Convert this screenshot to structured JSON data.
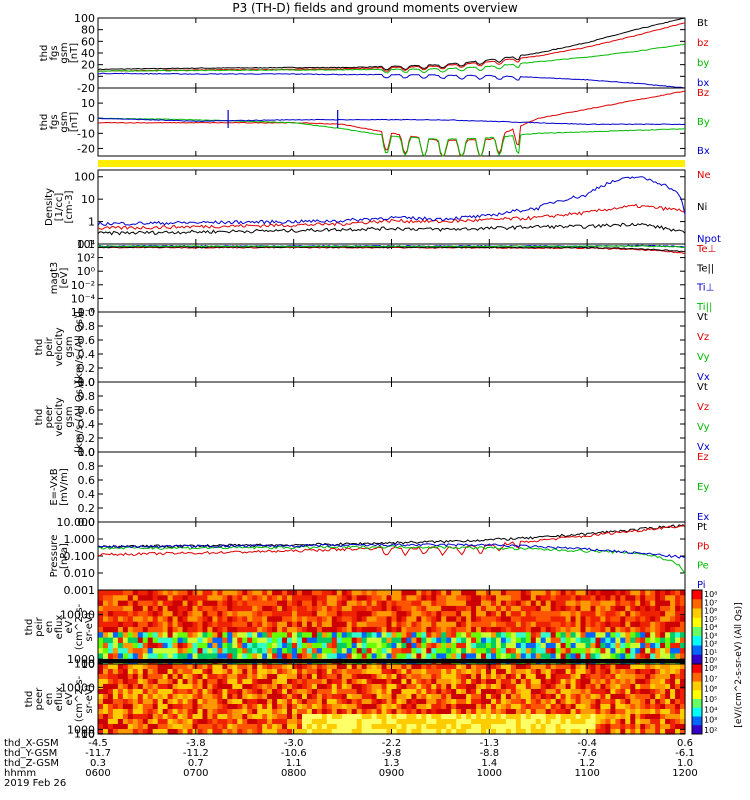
{
  "title": "P3 (TH-D) fields and ground moments overview",
  "colors": {
    "black": "#000000",
    "red": "#dd0000",
    "green": "#00bb00",
    "blue": "#0000cc",
    "yellow": "#ffee00",
    "axis": "#000000"
  },
  "time_axis": {
    "start": "0600",
    "end": "1200",
    "ticks": [
      "0600",
      "0700",
      "0800",
      "0900",
      "1000",
      "1100",
      "1200"
    ]
  },
  "orbit_table": {
    "rows": [
      {
        "label": "thd_X-GSM",
        "values": [
          "-4.5",
          "-3.8",
          "-3.0",
          "-2.2",
          "-1.3",
          "-0.4",
          "0.6"
        ]
      },
      {
        "label": "thd_Y-GSM",
        "values": [
          "-11.7",
          "-11.2",
          "-10.6",
          "-9.8",
          "-8.8",
          "-7.6",
          "-6.1"
        ]
      },
      {
        "label": "thd_Z-GSM",
        "values": [
          "0.3",
          "0.7",
          "1.1",
          "1.3",
          "1.4",
          "1.2",
          "1.0"
        ]
      },
      {
        "label": "hhmm",
        "values": [
          "0600",
          "0700",
          "0800",
          "0900",
          "1000",
          "1100",
          "1200"
        ]
      }
    ],
    "date": "2019 Feb 26"
  },
  "chart_data": [
    {
      "id": "fgs_gsm",
      "type": "line",
      "ylabel": [
        "thd",
        "fgs",
        "gsm",
        "[nT]"
      ],
      "ylim": [
        -20,
        100
      ],
      "yticks": [
        {
          "v": 100,
          "t": "100"
        },
        {
          "v": 80,
          "t": "80"
        },
        {
          "v": 60,
          "t": "60"
        },
        {
          "v": 40,
          "t": "40"
        },
        {
          "v": 20,
          "t": "20"
        },
        {
          "v": 0,
          "t": "0"
        },
        {
          "v": -20,
          "t": "-20"
        }
      ],
      "x_hours": [
        6.0,
        7.0,
        8.0,
        8.5,
        9.0,
        9.5,
        10.0,
        10.5,
        11.0,
        11.5,
        12.0
      ],
      "series": [
        {
          "name": "Bt",
          "color": "black",
          "values": [
            12,
            14,
            15,
            15,
            17,
            20,
            28,
            40,
            58,
            80,
            100
          ]
        },
        {
          "name": "bz",
          "color": "red",
          "values": [
            9,
            11,
            12,
            13,
            15,
            18,
            25,
            35,
            50,
            70,
            92
          ]
        },
        {
          "name": "by",
          "color": "green",
          "values": [
            9,
            10,
            11,
            11,
            12,
            13,
            17,
            25,
            33,
            43,
            55
          ]
        },
        {
          "name": "bx",
          "color": "blue",
          "values": [
            5,
            4,
            4,
            3,
            3,
            2,
            1,
            -2,
            -6,
            -12,
            -20
          ]
        }
      ]
    },
    {
      "id": "fgs_gse",
      "type": "line",
      "ylabel": [
        "thd",
        "fgs",
        "gsm",
        "[nT]"
      ],
      "ylim": [
        -25,
        20
      ],
      "yticks": [
        {
          "v": 10,
          "t": "10"
        },
        {
          "v": 0,
          "t": "0"
        },
        {
          "v": -10,
          "t": "-10"
        },
        {
          "v": -20,
          "t": "-20"
        }
      ],
      "x_hours": [
        6.0,
        7.0,
        8.0,
        8.5,
        9.0,
        9.5,
        10.0,
        10.5,
        11.0,
        11.5,
        12.0
      ],
      "series": [
        {
          "name": "Bz",
          "color": "red",
          "values": [
            -3,
            -3,
            -3,
            -4,
            -10,
            -15,
            -14,
            0,
            6,
            12,
            18
          ]
        },
        {
          "name": "By",
          "color": "green",
          "values": [
            0,
            -1,
            -3,
            -7,
            -12,
            -14,
            -13,
            -10,
            -9,
            -8,
            -7
          ]
        },
        {
          "name": "Bx",
          "color": "blue",
          "values": [
            0,
            -2,
            -1,
            -1,
            -1,
            -1,
            -2,
            -3,
            -4,
            -4,
            -4
          ]
        }
      ]
    },
    {
      "id": "density",
      "type": "line",
      "scale": "log",
      "ylabel": [
        "Density",
        "[1/cc]",
        "[cm-3]"
      ],
      "ylim": [
        0.1,
        200
      ],
      "yticks": [
        {
          "v": 100,
          "t": "100"
        },
        {
          "v": 10,
          "t": "10"
        },
        {
          "v": 1,
          "t": "1"
        },
        {
          "v": 0.1,
          "t": "0.1"
        }
      ],
      "x_hours": [
        6.0,
        7.0,
        8.0,
        8.5,
        9.0,
        9.5,
        10.0,
        10.5,
        11.0,
        11.5,
        12.0
      ],
      "series": [
        {
          "name": "Ne",
          "color": "red",
          "values": [
            0.5,
            0.6,
            0.7,
            0.8,
            1.1,
            1.0,
            1.2,
            1.5,
            2.5,
            5,
            3
          ]
        },
        {
          "name": "Ni",
          "color": "black",
          "values": [
            0.3,
            0.35,
            0.4,
            0.45,
            0.5,
            0.45,
            0.5,
            0.6,
            0.6,
            0.8,
            0.3
          ]
        },
        {
          "name": "Npot",
          "color": "blue",
          "values": [
            0.8,
            0.9,
            1.0,
            1.1,
            1.5,
            1.3,
            1.8,
            4,
            15,
            100,
            2
          ]
        }
      ]
    },
    {
      "id": "temperature",
      "type": "line",
      "scale": "log",
      "ylabel": [
        "magt3",
        "[eV]"
      ],
      "ylim": [
        1e-06,
        10000
      ],
      "yticks": [
        {
          "v": 10000,
          "t": "10⁴"
        },
        {
          "v": 100,
          "t": "10²"
        },
        {
          "v": 1,
          "t": "10⁰"
        },
        {
          "v": 0.01,
          "t": "10⁻²"
        },
        {
          "v": 0.0001,
          "t": "10⁻⁴"
        },
        {
          "v": 1e-06,
          "t": "10⁻⁶"
        }
      ],
      "x_hours": [
        6.0,
        8.0,
        10.0,
        11.0,
        11.5,
        12.0
      ],
      "series": [
        {
          "name": "Te⊥",
          "color": "red",
          "values": [
            3000,
            3000,
            2800,
            2500,
            1500,
            400
          ]
        },
        {
          "name": "Te||",
          "color": "black",
          "values": [
            3500,
            3500,
            3200,
            3000,
            2000,
            700
          ]
        },
        {
          "name": "Ti⊥",
          "color": "blue",
          "values": [
            5000,
            5000,
            5000,
            5000,
            6000,
            4000
          ]
        },
        {
          "name": "Ti||",
          "color": "green",
          "values": [
            4500,
            4500,
            4500,
            4500,
            5000,
            3500
          ]
        }
      ],
      "legend_labels": [
        "Te⊥",
        "Te||",
        "Ti⊥",
        "Ti||"
      ]
    },
    {
      "id": "peir_velocity",
      "type": "line",
      "ylabel": [
        "thd",
        "peir",
        "velocity",
        "gsm",
        "[km/s (All Qs)]"
      ],
      "ylim": [
        0.0,
        1.0
      ],
      "yticks": [
        {
          "v": 1.0,
          "t": "1.0"
        },
        {
          "v": 0.8,
          "t": "0.8"
        },
        {
          "v": 0.6,
          "t": "0.6"
        },
        {
          "v": 0.4,
          "t": "0.4"
        },
        {
          "v": 0.2,
          "t": "0.2"
        },
        {
          "v": 0.0,
          "t": "0.0"
        }
      ],
      "series": [
        {
          "name": "Vt",
          "color": "black",
          "values": []
        },
        {
          "name": "Vz",
          "color": "red",
          "values": []
        },
        {
          "name": "Vy",
          "color": "green",
          "values": []
        },
        {
          "name": "Vx",
          "color": "blue",
          "values": []
        }
      ]
    },
    {
      "id": "peer_velocity",
      "type": "line",
      "ylabel": [
        "thd",
        "peer",
        "velocity",
        "gsm",
        "[km/s (All Qs)]"
      ],
      "ylim": [
        0.0,
        1.0
      ],
      "yticks": [
        {
          "v": 1.0,
          "t": "1.0"
        },
        {
          "v": 0.8,
          "t": "0.8"
        },
        {
          "v": 0.6,
          "t": "0.6"
        },
        {
          "v": 0.4,
          "t": "0.4"
        },
        {
          "v": 0.2,
          "t": "0.2"
        },
        {
          "v": 0.0,
          "t": "0.0"
        }
      ],
      "series": [
        {
          "name": "Vt",
          "color": "black",
          "values": []
        },
        {
          "name": "Vz",
          "color": "red",
          "values": []
        },
        {
          "name": "Vy",
          "color": "green",
          "values": []
        },
        {
          "name": "Vx",
          "color": "blue",
          "values": []
        }
      ]
    },
    {
      "id": "efield",
      "type": "line",
      "ylabel": [
        "E=-VxB",
        "[mV/m]"
      ],
      "ylim": [
        0.0,
        1.0
      ],
      "yticks": [
        {
          "v": 1.0,
          "t": "1.0"
        },
        {
          "v": 0.8,
          "t": "0.8"
        },
        {
          "v": 0.6,
          "t": "0.6"
        },
        {
          "v": 0.4,
          "t": "0.4"
        },
        {
          "v": 0.2,
          "t": "0.2"
        },
        {
          "v": 0.0,
          "t": "0.0"
        }
      ],
      "series": [
        {
          "name": "Ez",
          "color": "red",
          "values": []
        },
        {
          "name": "Ey",
          "color": "green",
          "values": []
        },
        {
          "name": "Ex",
          "color": "blue",
          "values": []
        }
      ]
    },
    {
      "id": "pressure",
      "type": "line",
      "scale": "log",
      "ylabel": [
        "Pressure",
        "[nPa]"
      ],
      "ylim": [
        0.001,
        10
      ],
      "yticks": [
        {
          "v": 10,
          "t": "10.000"
        },
        {
          "v": 1,
          "t": "1.000"
        },
        {
          "v": 0.1,
          "t": "0.100"
        },
        {
          "v": 0.01,
          "t": "0.010"
        },
        {
          "v": 0.001,
          "t": "0.001"
        }
      ],
      "x_hours": [
        6.0,
        7.0,
        8.0,
        8.5,
        9.0,
        9.5,
        10.0,
        10.5,
        11.0,
        11.5,
        12.0
      ],
      "series": [
        {
          "name": "Pt",
          "color": "black",
          "values": [
            0.35,
            0.4,
            0.45,
            0.5,
            0.6,
            0.7,
            0.9,
            1.2,
            2.0,
            3.5,
            6.5
          ]
        },
        {
          "name": "Pb",
          "color": "red",
          "values": [
            0.12,
            0.15,
            0.2,
            0.25,
            0.3,
            0.3,
            0.4,
            0.8,
            1.5,
            3.0,
            6.0
          ]
        },
        {
          "name": "Pe",
          "color": "green",
          "values": [
            0.3,
            0.3,
            0.32,
            0.33,
            0.35,
            0.33,
            0.3,
            0.25,
            0.2,
            0.15,
            0.01
          ]
        },
        {
          "name": "Pi",
          "color": "blue",
          "values": [
            0.35,
            0.38,
            0.4,
            0.42,
            0.45,
            0.45,
            0.45,
            0.35,
            0.25,
            0.15,
            0.08
          ]
        }
      ]
    },
    {
      "id": "peir_spec",
      "type": "heatmap",
      "ylabel": [
        "thd",
        "peir",
        "en",
        "eflux",
        "eV",
        "(cm^2-s-",
        "sr-eV)"
      ],
      "ylim": [
        5,
        15000
      ],
      "yticks": [
        {
          "v": 10000,
          "t": "10000"
        },
        {
          "v": 1000,
          "t": "1000"
        },
        {
          "v": 100,
          "t": "100"
        },
        {
          "v": 10,
          "t": "10"
        }
      ],
      "colorbar_label": "[eV/(cm^2-s-sr-eV) (All Qs)]",
      "colorbar_ticks": [
        "10⁸",
        "10⁷",
        "10⁶",
        "10⁵",
        "10⁴",
        "10³",
        "10²",
        "10¹",
        "10⁰"
      ]
    },
    {
      "id": "peer_spec",
      "type": "heatmap",
      "ylabel": [
        "thd",
        "peer",
        "en",
        "eflux",
        "eV",
        "(cm^2-s-",
        "sr-eV)"
      ],
      "ylim": [
        5,
        15000
      ],
      "yticks": [
        {
          "v": 10000,
          "t": "10000"
        },
        {
          "v": 1000,
          "t": "1000"
        },
        {
          "v": 100,
          "t": "100"
        },
        {
          "v": 10,
          "t": "10"
        }
      ],
      "colorbar_label": "[eV/(cm^2-s-sr-eV)]",
      "colorbar_ticks": [
        "10⁸",
        "10⁷",
        "10⁶",
        "10⁵",
        "10⁴",
        "10³",
        "10²"
      ]
    }
  ]
}
